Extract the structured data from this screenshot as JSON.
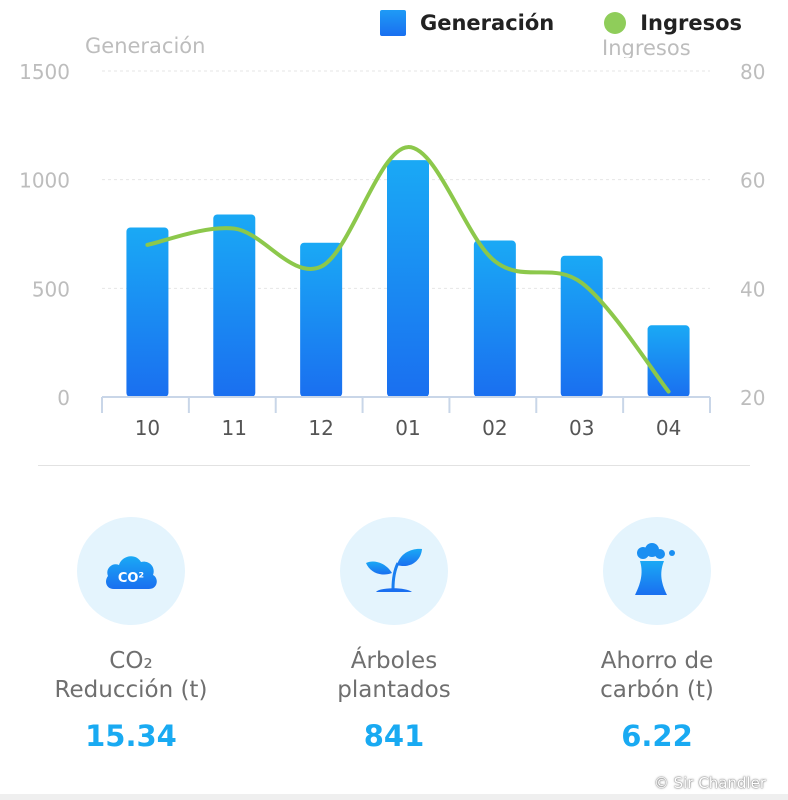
{
  "legend": {
    "bar_label": "Generación",
    "line_label": "Ingresos"
  },
  "axis_titles": {
    "left": "Generación",
    "right": "Ingresos"
  },
  "chart_data": {
    "type": "bar",
    "categories": [
      "10",
      "11",
      "12",
      "01",
      "02",
      "03",
      "04"
    ],
    "series": [
      {
        "name": "Generación",
        "type": "bar",
        "axis": "left",
        "values": [
          780,
          840,
          710,
          1090,
          720,
          650,
          330
        ],
        "color": "#1a8ff2"
      },
      {
        "name": "Ingresos",
        "type": "line",
        "axis": "right",
        "smooth": true,
        "values": [
          48,
          51,
          44,
          66,
          45,
          41,
          21
        ],
        "color": "#8cc84b"
      }
    ],
    "y_left": {
      "min": 0,
      "max": 1500,
      "ticks": [
        "0",
        "500",
        "1000",
        "1500"
      ]
    },
    "y_right": {
      "min": 20,
      "max": 80,
      "ticks": [
        "20",
        "40",
        "60",
        "80"
      ]
    },
    "xlabel": "",
    "grid": "horizontal dashed",
    "legend": "top-right"
  },
  "stats": [
    {
      "label": "CO₂\nReducción (t)",
      "value": "15.34",
      "icon": "co2-cloud-icon",
      "icon_text": "CO²"
    },
    {
      "label": "Árboles\nplantados",
      "value": "841",
      "icon": "sprout-icon"
    },
    {
      "label": "Ahorro de\ncarbón (t)",
      "value": "6.22",
      "icon": "cooling-tower-icon"
    }
  ],
  "watermark": "© Sir Chandler",
  "colors": {
    "bar_top": "#1aa9f5",
    "bar_bottom": "#1a6ff0",
    "line": "#8cc84b",
    "value": "#19aaf2",
    "icon_bg": "#e4f4fd"
  }
}
